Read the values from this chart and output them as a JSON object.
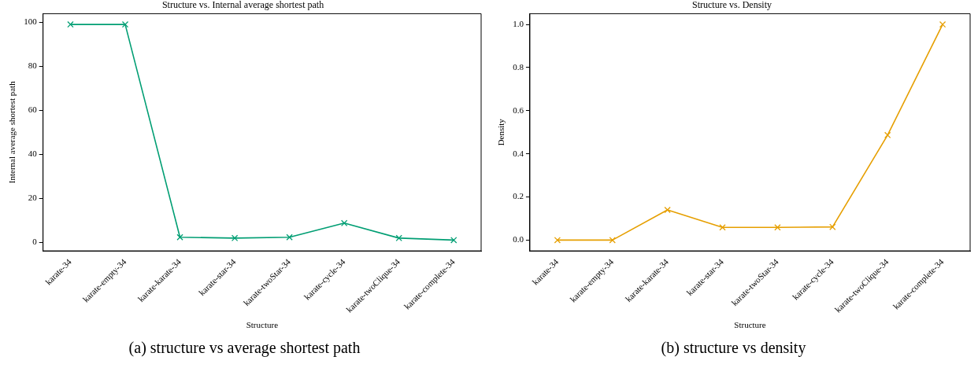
{
  "chart_data": [
    {
      "type": "line",
      "title": "Structure vs. Internal average shortest path",
      "xlabel": "Structure",
      "ylabel": "Internal average shortest path",
      "categories": [
        "karate-34",
        "karate-empty-34",
        "karate-karate-34",
        "karate-star-34",
        "karate-twoStar-34",
        "karate-cycle-34",
        "karate-twoClique-34",
        "karate-complete-34"
      ],
      "series": [
        {
          "color": "#009e73",
          "values": [
            99,
            99,
            2.3,
            1.9,
            2.3,
            8.7,
            1.9,
            1.0
          ]
        }
      ],
      "ylim": [
        -3.9,
        103.9
      ],
      "yticks": [
        0,
        20,
        40,
        60,
        80,
        100
      ],
      "grid": false,
      "legend": false,
      "marker": "cross",
      "line_style": "solid",
      "annotations": [
        "(a) structure vs average shortest path"
      ]
    },
    {
      "type": "line",
      "title": "Structure vs. Density",
      "xlabel": "Structure",
      "ylabel": "Density",
      "categories": [
        "karate-34",
        "karate-empty-34",
        "karate-karate-34",
        "karate-star-34",
        "karate-twoStar-34",
        "karate-cycle-34",
        "karate-twoClique-34",
        "karate-complete-34"
      ],
      "series": [
        {
          "color": "#e69f00",
          "values": [
            0,
            0,
            0.14,
            0.059,
            0.059,
            0.061,
            0.487,
            1.0
          ]
        }
      ],
      "ylim": [
        -0.05,
        1.05
      ],
      "yticks": [
        {
          "value": 0,
          "label": "0.0"
        },
        {
          "value": 0.2,
          "label": "0.2"
        },
        {
          "value": 0.4,
          "label": "0.4"
        },
        {
          "value": 0.6,
          "label": "0.6"
        },
        {
          "value": 0.8,
          "label": "0.8"
        },
        {
          "value": 1,
          "label": "1.0"
        }
      ],
      "grid": false,
      "legend": false,
      "marker": "cross",
      "line_style": "solid",
      "annotations": [
        "(b) structure vs density"
      ]
    }
  ]
}
